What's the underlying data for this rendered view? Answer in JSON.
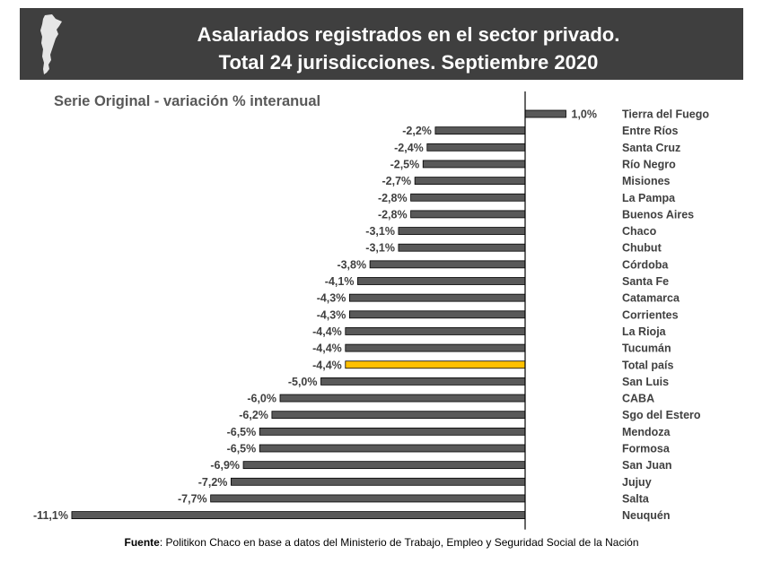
{
  "header": {
    "title_line1": "Asalariados registrados en el sector privado.",
    "title_line2": "Total 24 jurisdicciones. Septiembre 2020",
    "map_icon": "argentina-map-icon"
  },
  "subtitle": "Serie Original - variación % interanual",
  "source": {
    "label": "Fuente",
    "text": ": Politikon Chaco en base a datos del Ministerio de Trabajo, Empleo y Seguridad Social de la Nación"
  },
  "colors": {
    "bar": "#595959",
    "highlight": "#ffc000",
    "banner": "#3f3f3f"
  },
  "chart_data": {
    "type": "bar",
    "orientation": "horizontal",
    "categories": [
      "Tierra del Fuego",
      "Entre Ríos",
      "Santa Cruz",
      "Río Negro",
      "Misiones",
      "La Pampa",
      "Buenos Aires",
      "Chaco",
      "Chubut",
      "Córdoba",
      "Santa Fe",
      "Catamarca",
      "Corrientes",
      "La Rioja",
      "Tucumán",
      "Total país",
      "San Luis",
      "CABA",
      "Sgo del Estero",
      "Mendoza",
      "Formosa",
      "San Juan",
      "Jujuy",
      "Salta",
      "Neuquén"
    ],
    "values": [
      1.0,
      -2.2,
      -2.4,
      -2.5,
      -2.7,
      -2.8,
      -2.8,
      -3.1,
      -3.1,
      -3.8,
      -4.1,
      -4.3,
      -4.3,
      -4.4,
      -4.4,
      -4.4,
      -5.0,
      -6.0,
      -6.2,
      -6.5,
      -6.5,
      -6.9,
      -7.2,
      -7.7,
      -11.1
    ],
    "labels": [
      "1,0%",
      "-2,2%",
      "-2,4%",
      "-2,5%",
      "-2,7%",
      "-2,8%",
      "-2,8%",
      "-3,1%",
      "-3,1%",
      "-3,8%",
      "-4,1%",
      "-4,3%",
      "-4,3%",
      "-4,4%",
      "-4,4%",
      "-4,4%",
      "-5,0%",
      "-6,0%",
      "-6,2%",
      "-6,5%",
      "-6,5%",
      "-6,9%",
      "-7,2%",
      "-7,7%",
      "-11,1%"
    ],
    "highlight_category": "Total país",
    "xlim": [
      -11.1,
      1.0
    ]
  }
}
